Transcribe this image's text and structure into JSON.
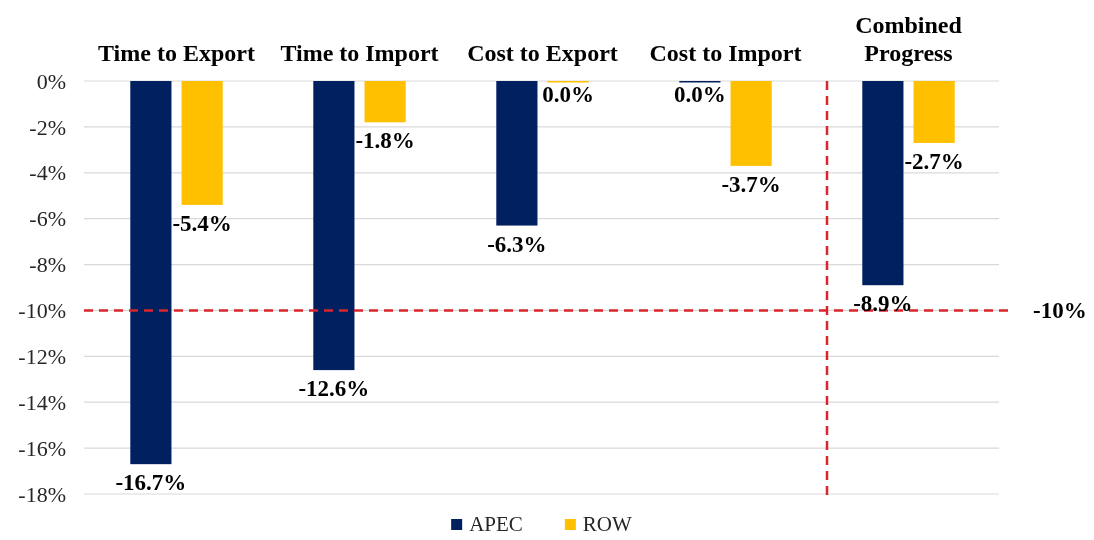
{
  "chart_data": {
    "type": "bar",
    "categories": [
      "Time to Export",
      "Time to Import",
      "Cost to Export",
      "Cost to Import",
      "Combined Progress"
    ],
    "series": [
      {
        "name": "APEC",
        "color": "#002060",
        "values": [
          -16.7,
          -12.6,
          -6.3,
          0,
          -8.9
        ],
        "value_labels": [
          "-16.7%",
          "-12.6%",
          "-6.3%",
          "0.0%",
          "-8.9%"
        ]
      },
      {
        "name": "ROW",
        "color": "#ffc000",
        "values": [
          -5.4,
          -1.8,
          0,
          -3.7,
          -2.7
        ],
        "value_labels": [
          "-5.4%",
          "-1.8%",
          "0.0%",
          "-3.7%",
          "-2.7%"
        ]
      }
    ],
    "ylim": [
      -18,
      0
    ],
    "yticks": [
      {
        "value": 0,
        "label": "0%"
      },
      {
        "value": -2,
        "label": "-2%"
      },
      {
        "value": -4,
        "label": "-4%"
      },
      {
        "value": -6,
        "label": "-6%"
      },
      {
        "value": -8,
        "label": "-8%"
      },
      {
        "value": -10,
        "label": "-10%"
      },
      {
        "value": -12,
        "label": "-12%"
      },
      {
        "value": -14,
        "label": "-14%"
      },
      {
        "value": -16,
        "label": "-16%"
      },
      {
        "value": -18,
        "label": "-18%"
      }
    ],
    "grid": "y",
    "legend": "bottom",
    "ref_lines": [
      {
        "axis": "y",
        "value": -10,
        "label": "-10%",
        "color": "#d9262c",
        "line_style": "dashed"
      },
      {
        "axis": "x",
        "value": "Combined Progress",
        "color": "#d9262c",
        "line_style": "dashed"
      }
    ]
  }
}
